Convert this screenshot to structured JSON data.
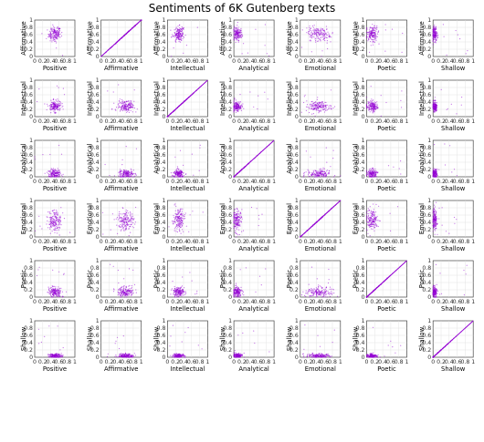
{
  "chart_data": {
    "type": "scatter",
    "title": "Sentiments of 6K Gutenberg texts",
    "layout": "scatter-matrix",
    "rows": [
      "Affirmative",
      "Intellectual",
      "Analytical",
      "Emotional",
      "Poetic",
      "Shallow"
    ],
    "cols": [
      "Positive",
      "Affirmative",
      "Intellectual",
      "Analytical",
      "Emotional",
      "Poetic",
      "Shallow"
    ],
    "x_ticks": [
      "0",
      "0.2",
      "0.4",
      "0.6",
      "0.8",
      "1"
    ],
    "y_ticks": [
      "0",
      "0.2",
      "0.4",
      "0.6",
      "0.8",
      "1"
    ],
    "xlim": [
      0,
      1
    ],
    "ylim": [
      0,
      1
    ],
    "grid": true,
    "point_color": "#9400d3",
    "variable_centers": {
      "Positive": [
        0.5,
        0.08
      ],
      "Affirmative": [
        0.62,
        0.1
      ],
      "Intellectual": [
        0.28,
        0.07
      ],
      "Analytical": [
        0.08,
        0.06
      ],
      "Emotional": [
        0.45,
        0.15
      ],
      "Poetic": [
        0.14,
        0.07
      ],
      "Shallow": [
        0.04,
        0.03
      ]
    }
  }
}
